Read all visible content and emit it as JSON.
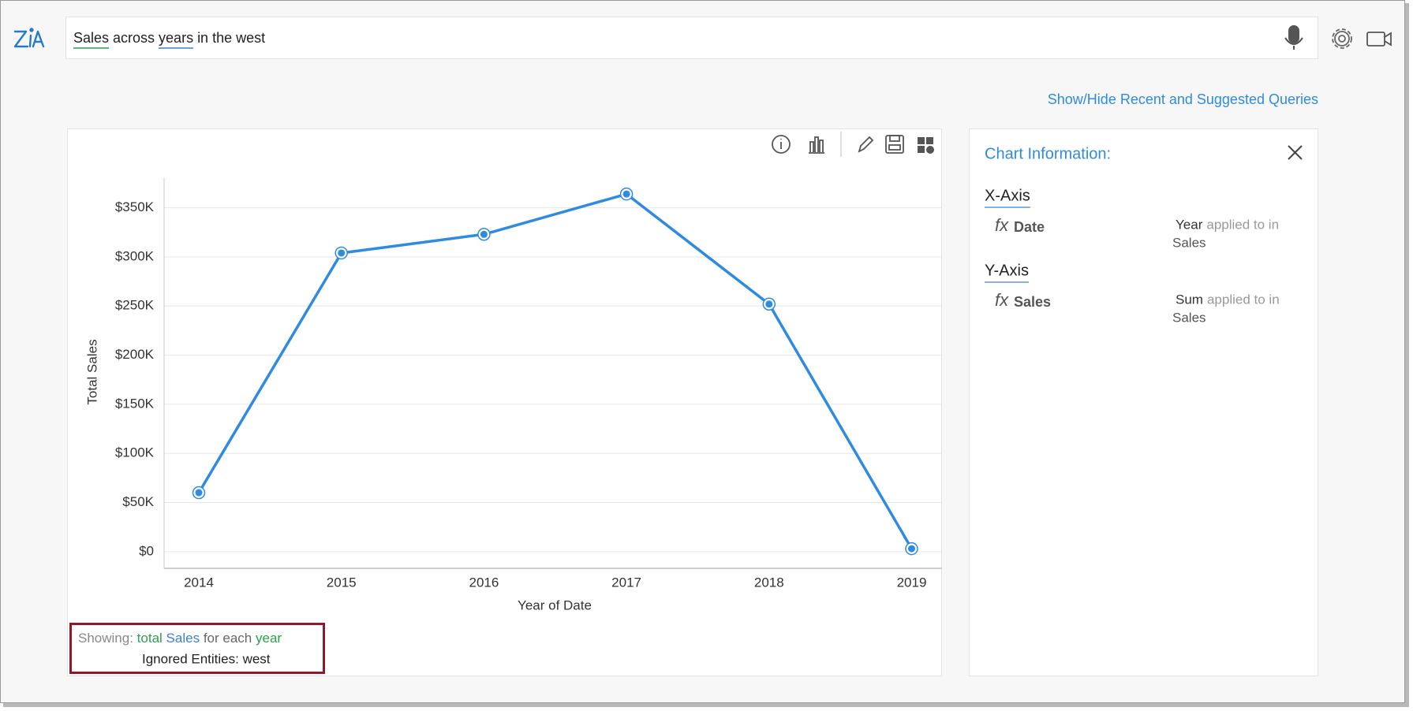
{
  "search": {
    "query_parts": [
      "Sales",
      "across",
      "years",
      "in the west"
    ]
  },
  "link": "Show/Hide Recent and Suggested Queries",
  "chart_data": {
    "type": "line",
    "categories": [
      "2014",
      "2015",
      "2016",
      "2017",
      "2018",
      "2019"
    ],
    "values": [
      60000,
      304000,
      323000,
      364000,
      252000,
      3000
    ],
    "color": "#2f8be0",
    "x_label": "Year of Date",
    "y_label": "Total Sales",
    "ylim": [
      -17000,
      381000
    ],
    "yticks": [
      {
        "value": 0,
        "label": "$0"
      },
      {
        "value": 50000,
        "label": "$50K"
      },
      {
        "value": 100000,
        "label": "$100K"
      },
      {
        "value": 150000,
        "label": "$150K"
      },
      {
        "value": 200000,
        "label": "$200K"
      },
      {
        "value": 250000,
        "label": "$250K"
      },
      {
        "value": 300000,
        "label": "$300K"
      },
      {
        "value": 350000,
        "label": "$350K"
      }
    ],
    "grid": true
  },
  "showing": {
    "prefix": "Showing:",
    "measure": "total",
    "field": "Sales",
    "middle": "for each",
    "dimension": "year",
    "ignored": "Ignored Entities: west"
  },
  "chart_info": {
    "title": "Chart Information:",
    "sections": [
      {
        "heading": "X-Axis",
        "fx": "fx",
        "field": "Date",
        "function": "Year",
        "applied": "applied to in",
        "target": "Sales"
      },
      {
        "heading": "Y-Axis",
        "fx": "fx",
        "field": "Sales",
        "function": "Sum",
        "applied": "applied to in",
        "target": "Sales"
      }
    ]
  }
}
